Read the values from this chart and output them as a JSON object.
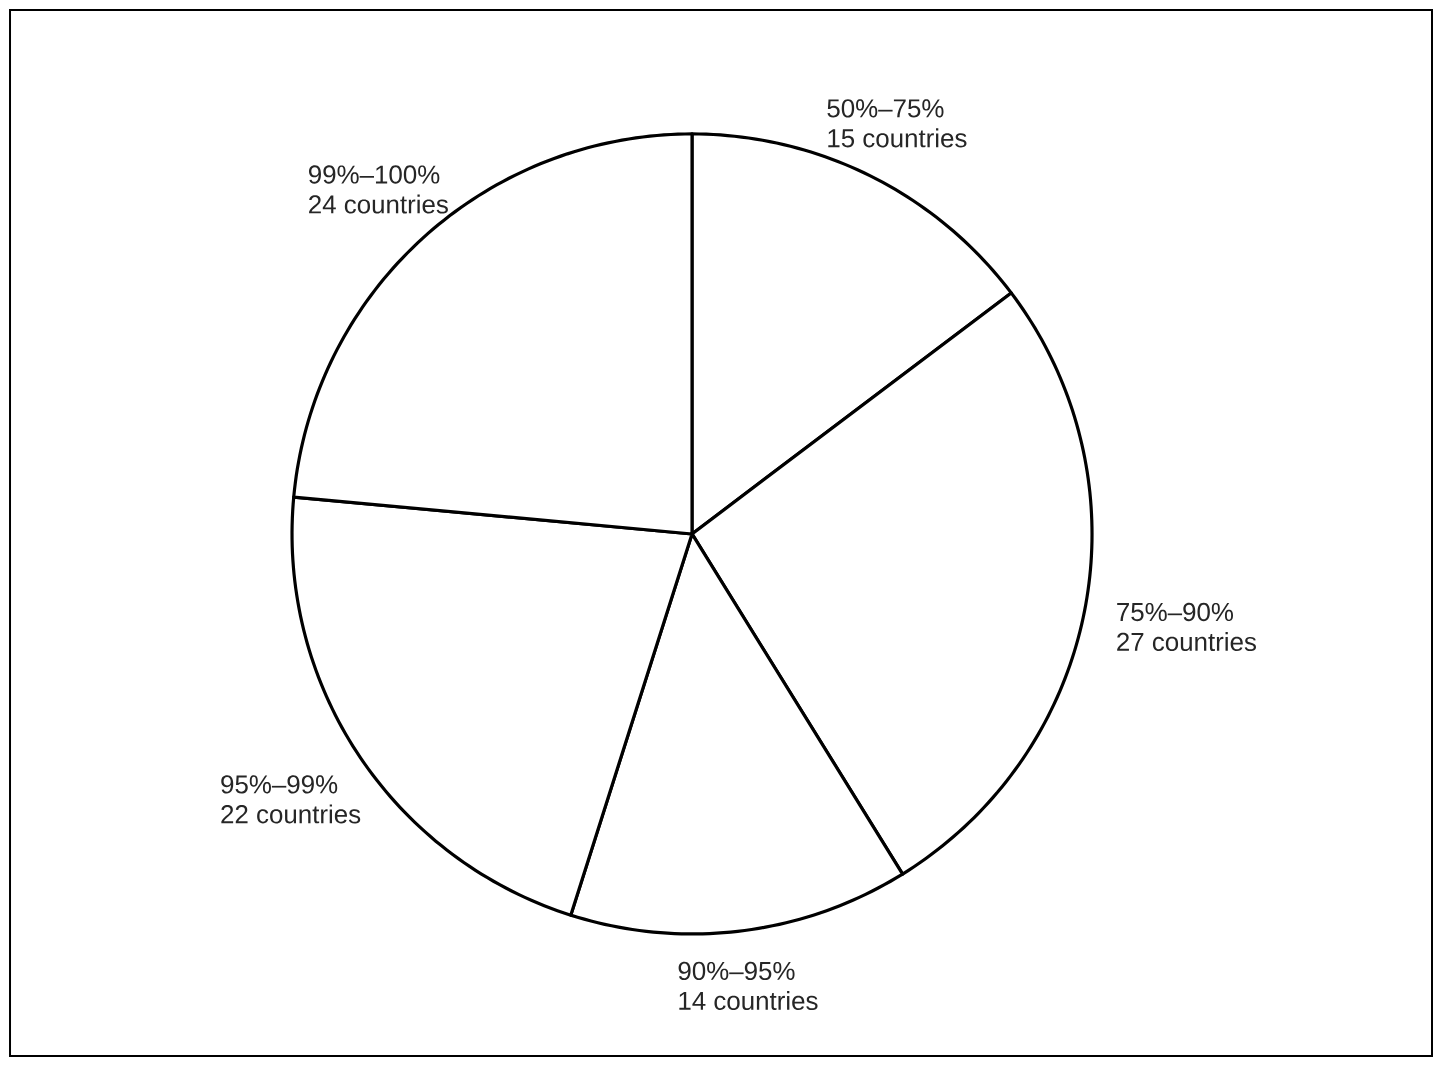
{
  "chart_data": {
    "type": "pie",
    "categories": [
      "50%–75%",
      "75%–90%",
      "90%–95%",
      "95%–99%",
      "99%–100%"
    ],
    "values": [
      15,
      27,
      14,
      22,
      24
    ],
    "value_labels": [
      "15 countries",
      "27 countries",
      "14 countries",
      "22 countries",
      "24 countries"
    ],
    "colors": [
      "#ffffff",
      "#ffffff",
      "#ffffff",
      "#ffffff",
      "#ffffff"
    ]
  }
}
